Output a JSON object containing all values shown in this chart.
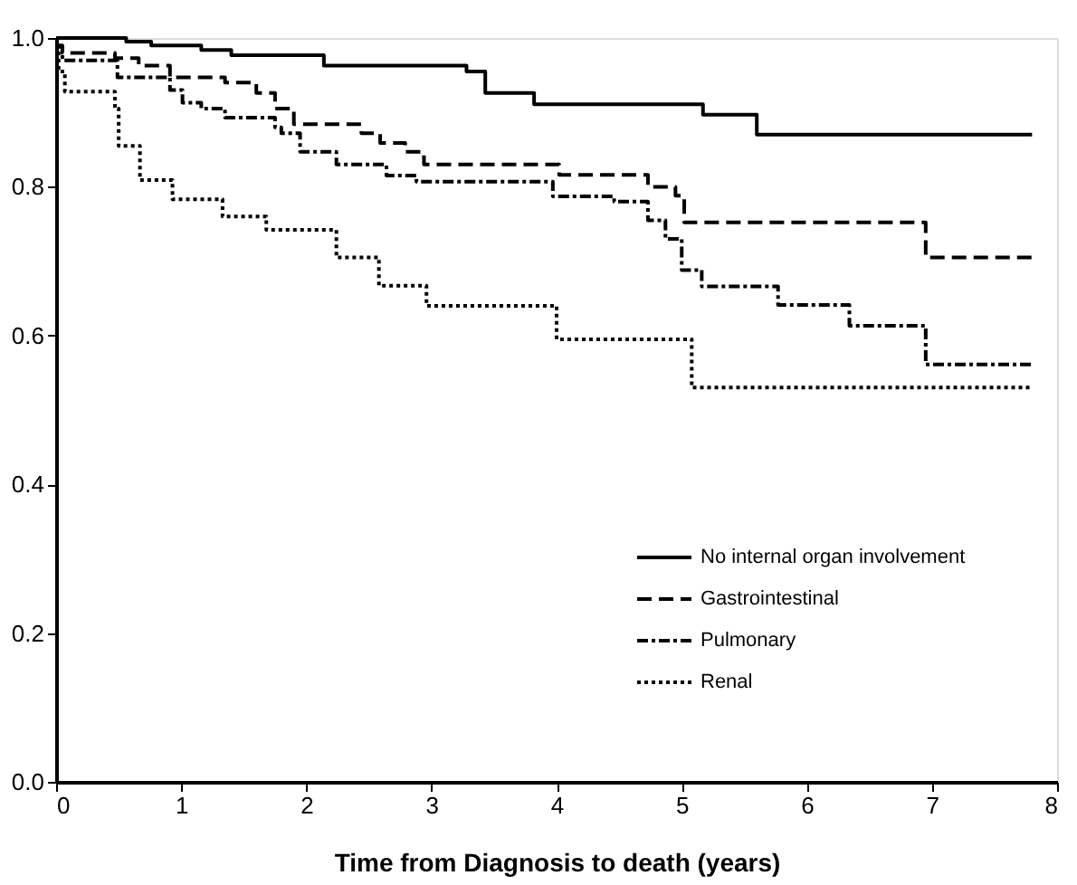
{
  "chart_data": {
    "type": "step",
    "xlabel": "Time from Diagnosis to death (years)",
    "xlim": [
      0,
      8
    ],
    "xticks": [
      0,
      1,
      2,
      3,
      4,
      5,
      6,
      7,
      8
    ],
    "ylim": [
      0,
      1
    ],
    "yticks": [
      {
        "value": 0,
        "label": "0.0"
      },
      {
        "value": 0.2,
        "label": "0.2"
      },
      {
        "value": 0.4,
        "label": "0.4"
      },
      {
        "value": 0.6,
        "label": "0.6"
      },
      {
        "value": 0.8,
        "label": "0.8"
      },
      {
        "value": 1,
        "label": "1.0"
      }
    ],
    "grid": false,
    "legend": "bottom right",
    "series": [
      {
        "name": "No internal organ involvement",
        "color": "#000000",
        "line_style": "solid",
        "x": [
          0,
          0.56,
          0.76,
          1.16,
          1.4,
          2.14,
          3.28,
          3.43,
          3.82,
          5.17,
          5.6,
          7.8
        ],
        "values": [
          1.0,
          0.995,
          0.99,
          0.984,
          0.977,
          0.963,
          0.955,
          0.926,
          0.911,
          0.897,
          0.87,
          0.87
        ]
      },
      {
        "name": "Gastrointestinal",
        "color": "#000000",
        "line_style": "dashed",
        "x": [
          0,
          0.05,
          0.47,
          0.66,
          0.91,
          1.35,
          1.6,
          1.75,
          1.9,
          2.44,
          2.59,
          2.79,
          2.94,
          4.02,
          4.73,
          4.95,
          5.02,
          6.95,
          7.8
        ],
        "values": [
          0.99,
          0.98,
          0.973,
          0.963,
          0.947,
          0.94,
          0.926,
          0.905,
          0.884,
          0.872,
          0.859,
          0.847,
          0.83,
          0.816,
          0.8,
          0.788,
          0.752,
          0.705,
          0.705
        ]
      },
      {
        "name": "Pulmonary",
        "color": "#000000",
        "line_style": "dashdot",
        "x": [
          0,
          0.05,
          0.49,
          0.91,
          1.01,
          1.16,
          1.35,
          1.75,
          1.8,
          1.95,
          2.24,
          2.64,
          2.88,
          3.97,
          4.46,
          4.73,
          4.87,
          5.0,
          5.16,
          5.77,
          6.34,
          6.95,
          7.8
        ],
        "values": [
          0.988,
          0.97,
          0.947,
          0.93,
          0.913,
          0.905,
          0.893,
          0.88,
          0.872,
          0.847,
          0.83,
          0.815,
          0.807,
          0.787,
          0.78,
          0.755,
          0.73,
          0.688,
          0.666,
          0.641,
          0.613,
          0.561,
          0.561
        ]
      },
      {
        "name": "Renal",
        "color": "#000000",
        "line_style": "dotted",
        "x": [
          0,
          0.02,
          0.07,
          0.47,
          0.5,
          0.67,
          0.93,
          1.33,
          1.68,
          2.24,
          2.58,
          2.96,
          4.0,
          5.08,
          7.8
        ],
        "values": [
          0.988,
          0.955,
          0.928,
          0.905,
          0.855,
          0.809,
          0.783,
          0.76,
          0.742,
          0.705,
          0.667,
          0.64,
          0.595,
          0.53,
          0.53
        ]
      }
    ]
  }
}
